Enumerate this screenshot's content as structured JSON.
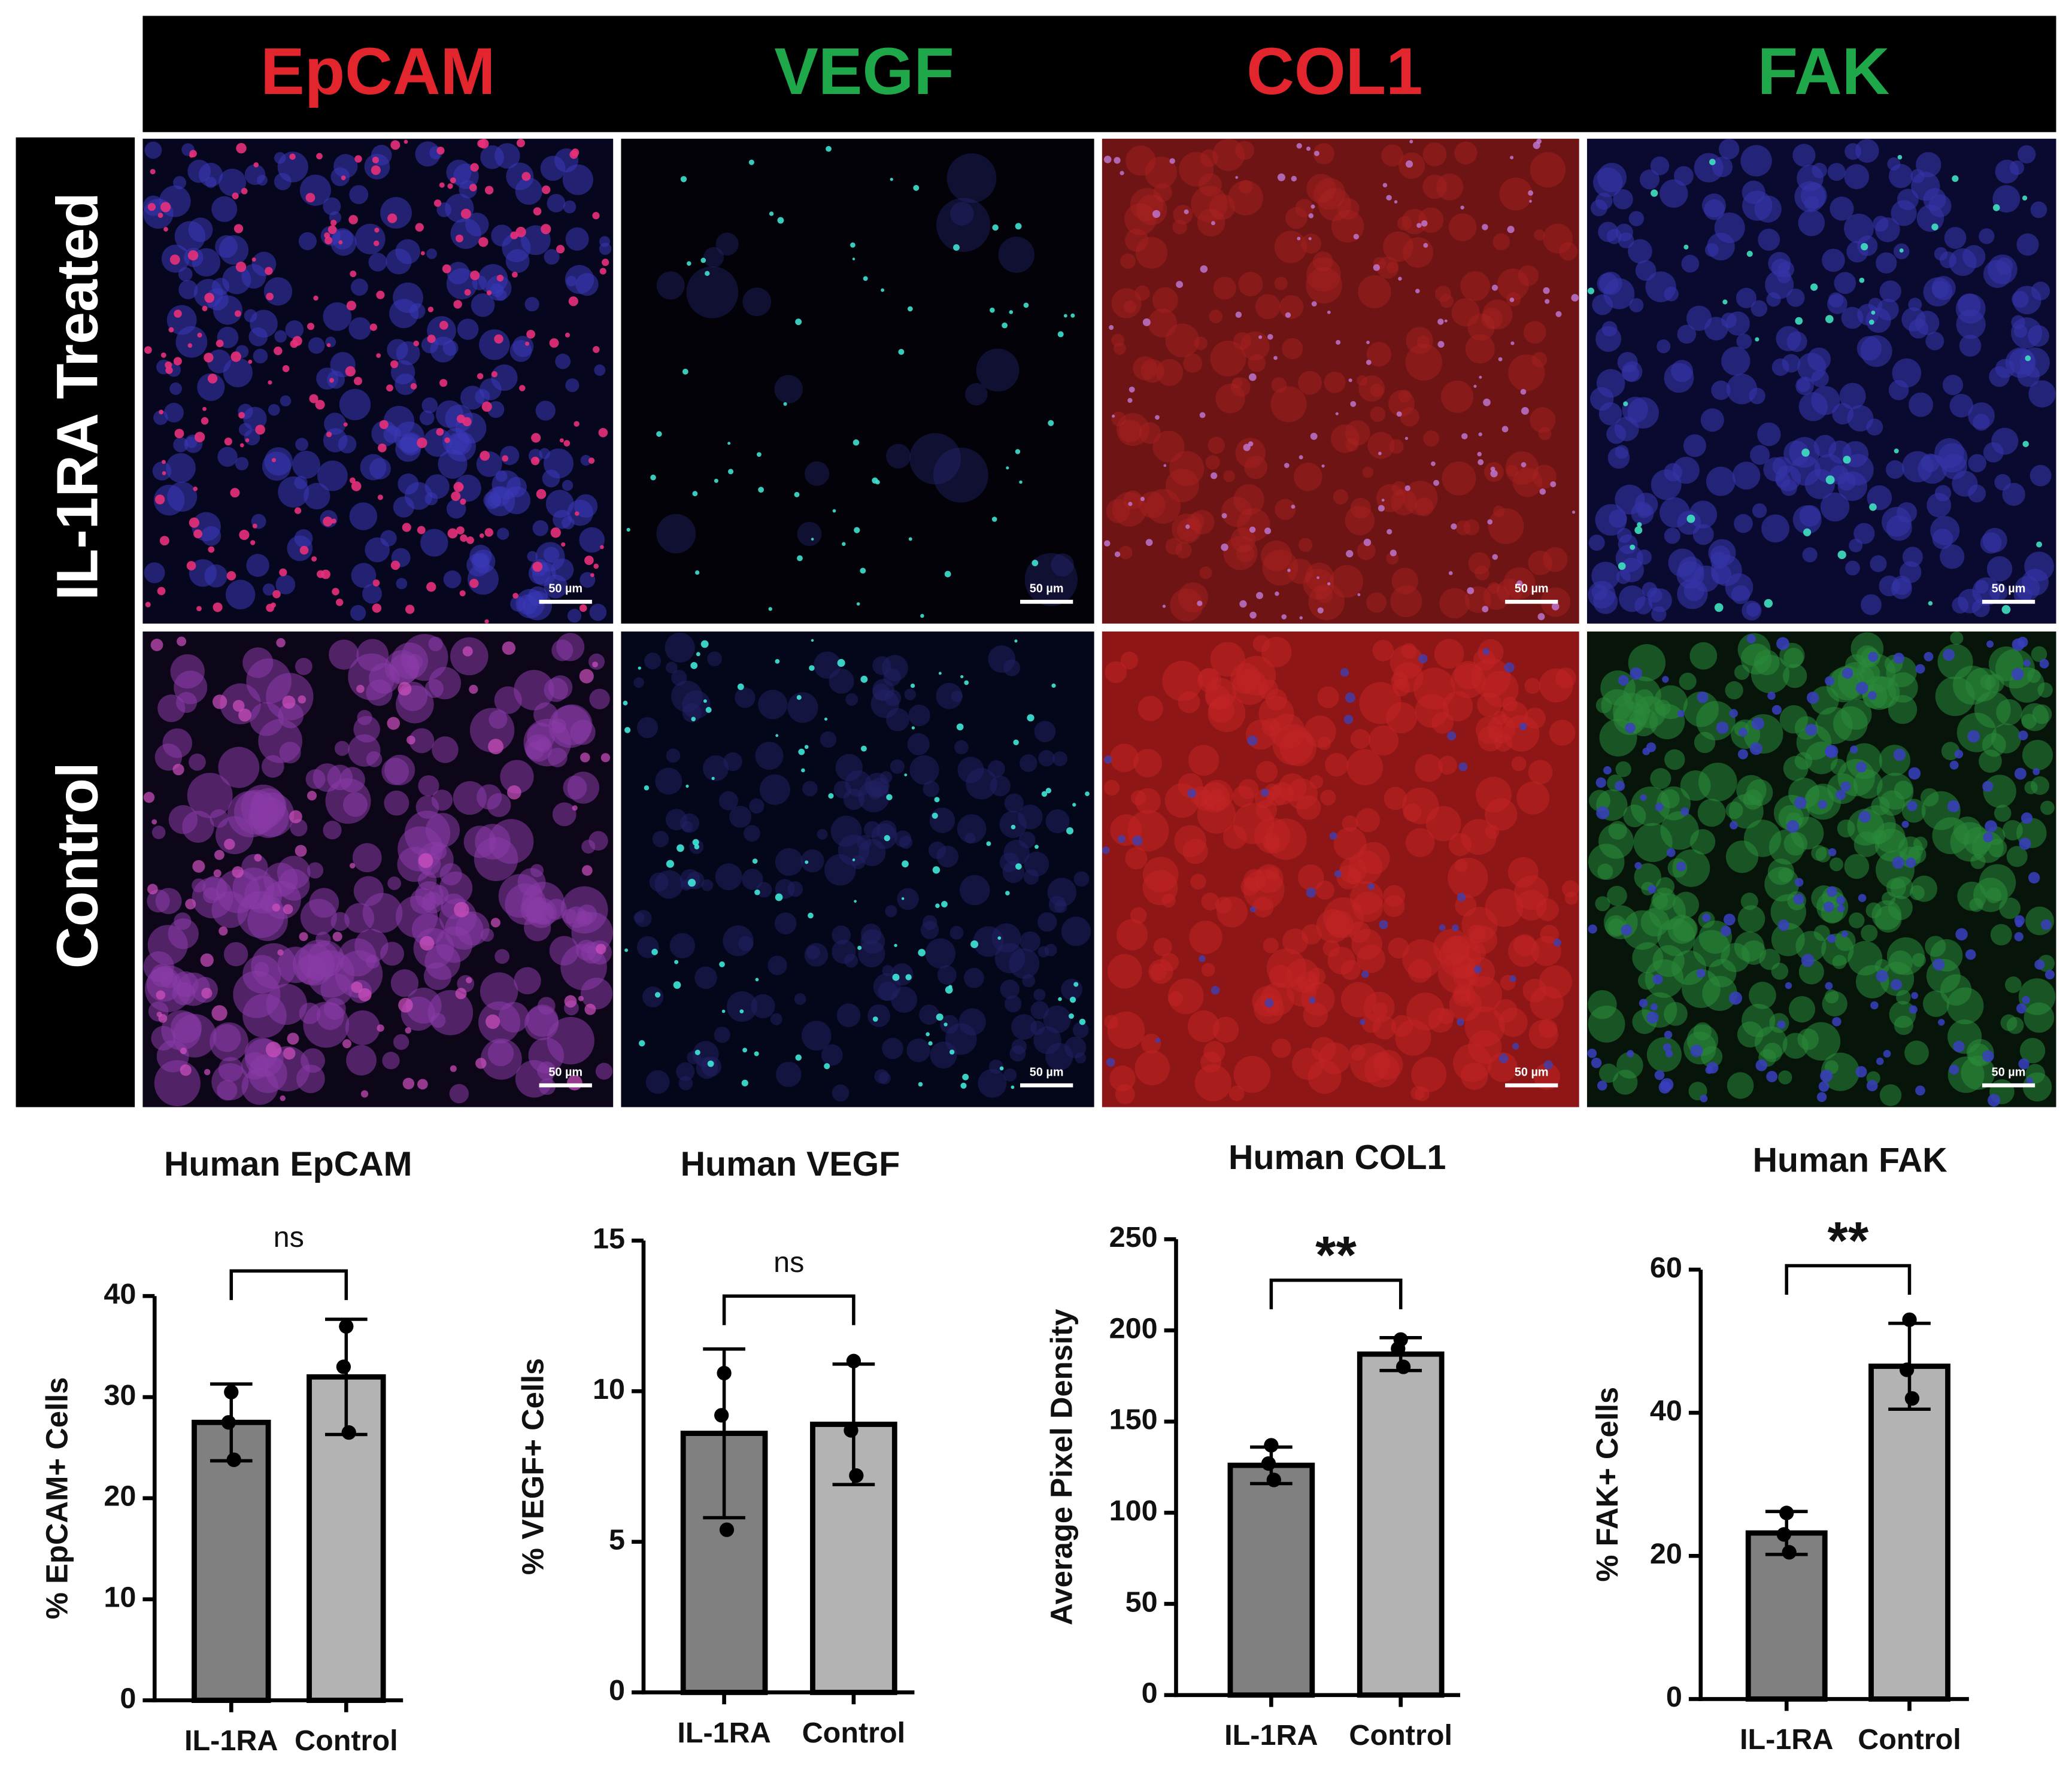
{
  "panels": {
    "columns": [
      {
        "label": "EpCAM",
        "color": "#e3262e"
      },
      {
        "label": "VEGF",
        "color": "#1fa84a"
      },
      {
        "label": "COL1",
        "color": "#e3262e"
      },
      {
        "label": "FAK",
        "color": "#1fa84a"
      }
    ],
    "rows": [
      "IL-1RA Treated",
      "Control"
    ],
    "scale_bar": "50 µm"
  },
  "chart_data": [
    {
      "type": "bar",
      "title": "Human EpCAM",
      "ylabel": "% EpCAM+ Cells",
      "categories": [
        "IL-1RA",
        "Control"
      ],
      "values": [
        27.5,
        32
      ],
      "errors": [
        3.8,
        5.7
      ],
      "points": [
        [
          30.5,
          27.5,
          23.8
        ],
        [
          37,
          33,
          26.5
        ]
      ],
      "colors": [
        "#808080",
        "#b3b3b3"
      ],
      "ylim": [
        0,
        40
      ],
      "yticks": [
        0,
        10,
        20,
        30,
        40
      ],
      "significance": "ns"
    },
    {
      "type": "bar",
      "title": "Human VEGF",
      "ylabel": "% VEGF+ Cells",
      "categories": [
        "IL-1RA",
        "Control"
      ],
      "values": [
        8.6,
        8.9
      ],
      "errors": [
        2.8,
        2.0
      ],
      "points": [
        [
          10.6,
          9.2,
          5.4
        ],
        [
          11.0,
          8.7,
          7.2
        ]
      ],
      "colors": [
        "#808080",
        "#b3b3b3"
      ],
      "ylim": [
        0,
        15
      ],
      "yticks": [
        0,
        5,
        10,
        15
      ],
      "significance": "ns"
    },
    {
      "type": "bar",
      "title": "Human COL1",
      "ylabel": "Average Pixel Density",
      "categories": [
        "IL-1RA",
        "Control"
      ],
      "values": [
        126,
        187
      ],
      "errors": [
        10,
        9
      ],
      "points": [
        [
          137,
          127,
          118
        ],
        [
          195,
          190,
          180
        ]
      ],
      "colors": [
        "#808080",
        "#b3b3b3"
      ],
      "ylim": [
        0,
        250
      ],
      "yticks": [
        0,
        50,
        100,
        150,
        200,
        250
      ],
      "significance": "**"
    },
    {
      "type": "bar",
      "title": "Human FAK",
      "ylabel": "% FAK+ Cells",
      "categories": [
        "IL-1RA",
        "Control"
      ],
      "values": [
        23.2,
        46.5
      ],
      "errors": [
        3,
        6
      ],
      "points": [
        [
          26,
          23,
          20.5
        ],
        [
          53,
          46,
          42
        ]
      ],
      "colors": [
        "#808080",
        "#b3b3b3"
      ],
      "ylim": [
        0,
        60
      ],
      "yticks": [
        0,
        20,
        40,
        60
      ],
      "significance": "**"
    }
  ]
}
